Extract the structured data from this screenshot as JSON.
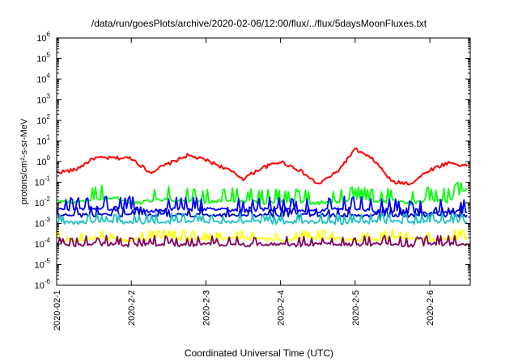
{
  "chart_data": {
    "type": "line",
    "title": "/data/run/goesPlots/archive/2020-02-06/12:00/flux/../flux/5daysMoonFluxes.txt",
    "xlabel": "Coordinated Universal Time (UTC)",
    "ylabel": "protons/cm²-s-sr-MeV",
    "yscale": "log",
    "ylim": [
      1e-06,
      1000000.0
    ],
    "xlim": [
      "2020-02-01",
      "2020-02-06 13:00"
    ],
    "x_ticks": [
      "2020-02-1",
      "2020-2-2",
      "2020-2-3",
      "2020-2-4",
      "2020-2-5",
      "2020-2-6"
    ],
    "y_ticks": [
      "10-6",
      "10-5",
      "10-4",
      "10-3",
      "10-2",
      "10-1",
      "100",
      "101",
      "102",
      "103",
      "104",
      "105",
      "106"
    ],
    "grid": false,
    "legend": "none",
    "x": [
      "2020-02-01 00:00",
      "2020-02-01 06:00",
      "2020-02-01 12:00",
      "2020-02-01 18:00",
      "2020-02-02 00:00",
      "2020-02-02 06:00",
      "2020-02-02 12:00",
      "2020-02-02 18:00",
      "2020-02-03 00:00",
      "2020-02-03 06:00",
      "2020-02-03 12:00",
      "2020-02-03 18:00",
      "2020-02-04 00:00",
      "2020-02-04 06:00",
      "2020-02-04 12:00",
      "2020-02-04 18:00",
      "2020-02-05 00:00",
      "2020-02-05 06:00",
      "2020-02-05 12:00",
      "2020-02-05 18:00",
      "2020-02-06 00:00",
      "2020-02-06 06:00",
      "2020-02-06 12:00"
    ],
    "series": [
      {
        "color": "#ff0000",
        "values": [
          0.3,
          0.4,
          1.5,
          1.5,
          1.5,
          0.3,
          0.8,
          2.0,
          1.2,
          0.5,
          0.15,
          0.5,
          1.0,
          0.4,
          0.08,
          0.3,
          4.0,
          1.2,
          0.1,
          0.09,
          0.4,
          0.9,
          0.6
        ]
      },
      {
        "color": "#00ff00",
        "values": [
          0.012,
          0.01,
          0.015,
          0.02,
          0.01,
          0.012,
          0.015,
          0.012,
          0.01,
          0.015,
          0.012,
          0.01,
          0.012,
          0.011,
          0.01,
          0.012,
          0.015,
          0.012,
          0.012,
          0.01,
          0.015,
          0.012,
          0.05
        ]
      },
      {
        "color": "#0000ff",
        "values": [
          0.005,
          0.004,
          0.006,
          0.005,
          0.005,
          0.004,
          0.005,
          0.005,
          0.005,
          0.005,
          0.004,
          0.005,
          0.005,
          0.004,
          0.004,
          0.005,
          0.005,
          0.004,
          0.004,
          0.003,
          0.003,
          0.004,
          0.0035
        ]
      },
      {
        "color": "#0000cc",
        "values": [
          0.0025,
          0.0025,
          0.0025,
          0.0025,
          0.0025,
          0.0025,
          0.0025,
          0.0025,
          0.0025,
          0.0025,
          0.0025,
          0.0025,
          0.0025,
          0.0025,
          0.0025,
          0.0025,
          0.0025,
          0.0025,
          0.0025,
          0.0025,
          0.0025,
          0.0025,
          0.0025
        ]
      },
      {
        "color": "#20c0c0",
        "values": [
          0.0012,
          0.0011,
          0.0012,
          0.0012,
          0.0011,
          0.0012,
          0.0012,
          0.0012,
          0.0011,
          0.0012,
          0.0012,
          0.0012,
          0.0011,
          0.0012,
          0.0012,
          0.0011,
          0.0012,
          0.0012,
          0.0012,
          0.0011,
          0.0012,
          0.0012,
          0.0012
        ]
      },
      {
        "color": "#ffff00",
        "values": [
          0.0002,
          0.00015,
          0.0002,
          0.00018,
          0.00015,
          0.00018,
          0.0002,
          0.00018,
          0.00015,
          0.00018,
          0.0002,
          0.00018,
          0.00015,
          0.00018,
          0.0002,
          0.00018,
          0.00015,
          0.00018,
          0.0002,
          0.00018,
          0.00015,
          0.0002,
          0.0002
        ]
      },
      {
        "color": "#800060",
        "values": [
          0.0001,
          9e-05,
          0.0001,
          0.0001,
          9e-05,
          0.0001,
          0.0001,
          9e-05,
          0.0001,
          0.0001,
          9e-05,
          0.0001,
          0.0001,
          9e-05,
          0.0001,
          0.0001,
          9e-05,
          0.0001,
          0.0001,
          9e-05,
          0.0001,
          0.0001,
          0.0001
        ]
      }
    ]
  }
}
